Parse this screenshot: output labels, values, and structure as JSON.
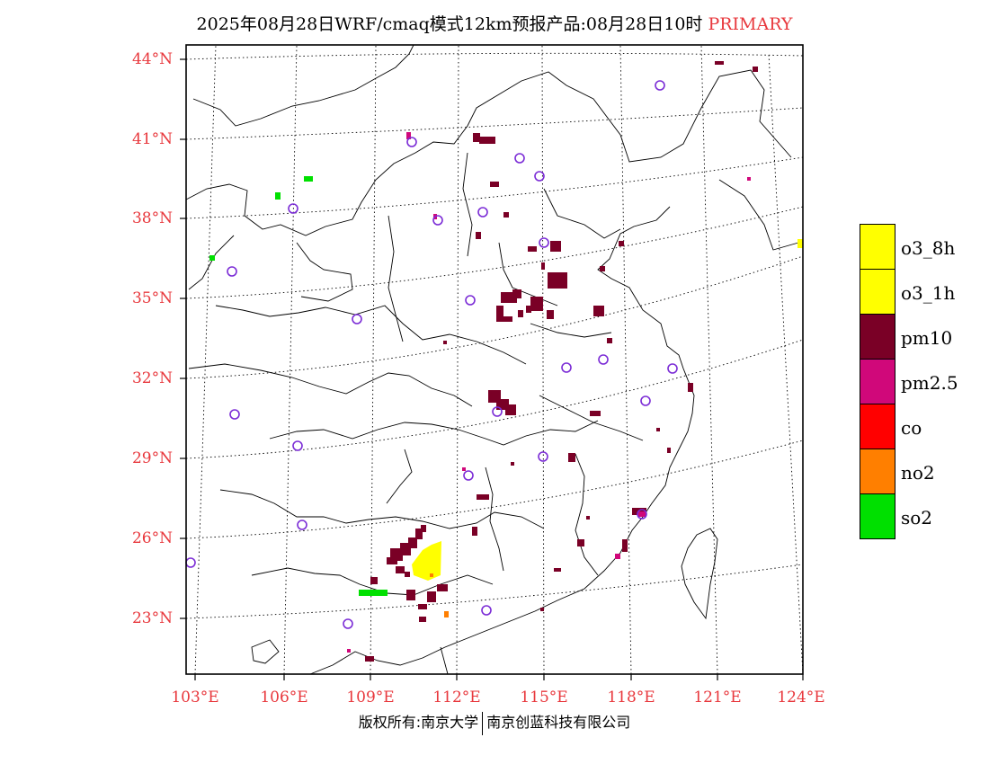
{
  "title": {
    "main": "2025年08月28日WRF/cmaq模式12km预报产品:08月28日10时",
    "tag": "PRIMARY"
  },
  "colors": {
    "accent_red": "#e8383d",
    "station_marker": "#7b2cd6"
  },
  "map": {
    "lat_labels": [
      "44°N",
      "41°N",
      "38°N",
      "35°N",
      "32°N",
      "29°N",
      "26°N",
      "23°N"
    ],
    "lon_labels": [
      "103°E",
      "106°E",
      "109°E",
      "112°E",
      "115°E",
      "118°E",
      "121°E",
      "124°E"
    ]
  },
  "legend": [
    {
      "label": "o3_8h",
      "color": "#ffff00"
    },
    {
      "label": "o3_1h",
      "color": "#ffff00"
    },
    {
      "label": "pm10",
      "color": "#7a0026"
    },
    {
      "label": "pm2.5",
      "color": "#d0087a"
    },
    {
      "label": "co",
      "color": "#ff0000"
    },
    {
      "label": "no2",
      "color": "#ff7f00"
    },
    {
      "label": "so2",
      "color": "#00e000"
    }
  ],
  "footer": {
    "left": "版权所有:南京大学",
    "right": "南京创蓝科技有限公司"
  }
}
